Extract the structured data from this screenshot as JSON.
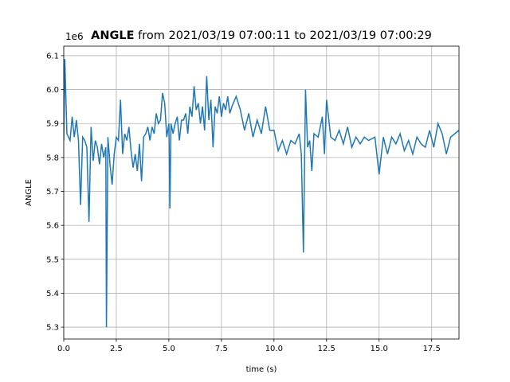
{
  "chart_data": {
    "type": "line",
    "title": {
      "bold": "ANGLE",
      "rest": "from 2021/03/19 07:00:11 to 2021/03/19 07:00:29"
    },
    "x_label": "time (s)",
    "y_label": "ANGLE",
    "y_offset_text": "1e6",
    "grid": true,
    "xlim": [
      0,
      18.8
    ],
    "ylim": [
      5.265,
      6.128
    ],
    "xticks": [
      {
        "value": 0,
        "label": "0.0"
      },
      {
        "value": 2.5,
        "label": "2.5"
      },
      {
        "value": 5,
        "label": "5.0"
      },
      {
        "value": 7.5,
        "label": "7.5"
      },
      {
        "value": 10,
        "label": "10.0"
      },
      {
        "value": 12.5,
        "label": "12.5"
      },
      {
        "value": 15,
        "label": "15.0"
      },
      {
        "value": 17.5,
        "label": "17.5"
      }
    ],
    "yticks": [
      {
        "value": 5.3,
        "label": "5.3"
      },
      {
        "value": 5.4,
        "label": "5.4"
      },
      {
        "value": 5.5,
        "label": "5.5"
      },
      {
        "value": 5.6,
        "label": "5.6"
      },
      {
        "value": 5.7,
        "label": "5.7"
      },
      {
        "value": 5.8,
        "label": "5.8"
      },
      {
        "value": 5.9,
        "label": "5.9"
      },
      {
        "value": 6.0,
        "label": "6.0"
      },
      {
        "value": 6.1,
        "label": "6.1"
      }
    ],
    "series": [
      {
        "name": "ANGLE",
        "color": "#1f77b4",
        "x": [
          0,
          0.05,
          0.15,
          0.3,
          0.4,
          0.5,
          0.6,
          0.7,
          0.8,
          0.9,
          1.0,
          1.1,
          1.2,
          1.3,
          1.4,
          1.5,
          1.6,
          1.7,
          1.8,
          1.9,
          2.0,
          2.03,
          2.1,
          2.2,
          2.3,
          2.4,
          2.5,
          2.6,
          2.7,
          2.8,
          2.9,
          3.0,
          3.1,
          3.2,
          3.3,
          3.4,
          3.5,
          3.6,
          3.7,
          3.8,
          3.9,
          4.0,
          4.1,
          4.2,
          4.3,
          4.4,
          4.5,
          4.6,
          4.7,
          4.8,
          4.9,
          5.0,
          5.05,
          5.1,
          5.2,
          5.3,
          5.4,
          5.5,
          5.6,
          5.7,
          5.8,
          5.9,
          6.0,
          6.1,
          6.2,
          6.3,
          6.4,
          6.5,
          6.6,
          6.7,
          6.8,
          6.9,
          7.0,
          7.1,
          7.2,
          7.3,
          7.4,
          7.5,
          7.6,
          7.7,
          7.8,
          7.9,
          8.0,
          8.2,
          8.4,
          8.6,
          8.8,
          9.0,
          9.2,
          9.4,
          9.6,
          9.8,
          10.0,
          10.2,
          10.4,
          10.6,
          10.8,
          11.0,
          11.2,
          11.3,
          11.4,
          11.5,
          11.6,
          11.7,
          11.8,
          11.9,
          12.1,
          12.3,
          12.4,
          12.5,
          12.7,
          12.9,
          13.1,
          13.3,
          13.5,
          13.7,
          13.9,
          14.1,
          14.3,
          14.5,
          14.8,
          15.0,
          15.2,
          15.4,
          15.6,
          15.8,
          16.0,
          16.2,
          16.4,
          16.6,
          16.8,
          17.0,
          17.2,
          17.4,
          17.6,
          17.8,
          18.0,
          18.2,
          18.4,
          18.6,
          18.8
        ],
        "values": [
          5.85,
          6.09,
          5.87,
          5.85,
          5.92,
          5.86,
          5.91,
          5.85,
          5.66,
          5.86,
          5.85,
          5.83,
          5.61,
          5.89,
          5.79,
          5.85,
          5.83,
          5.78,
          5.84,
          5.8,
          5.83,
          5.3,
          5.86,
          5.78,
          5.72,
          5.81,
          5.86,
          5.85,
          5.97,
          5.81,
          5.87,
          5.85,
          5.89,
          5.82,
          5.77,
          5.81,
          5.76,
          5.84,
          5.73,
          5.86,
          5.87,
          5.89,
          5.85,
          5.89,
          5.87,
          5.93,
          5.9,
          5.91,
          5.99,
          5.96,
          5.86,
          5.9,
          5.65,
          5.9,
          5.87,
          5.9,
          5.92,
          5.85,
          5.91,
          5.91,
          5.93,
          5.87,
          5.95,
          5.92,
          6.01,
          5.94,
          5.96,
          5.9,
          5.95,
          5.88,
          6.04,
          5.91,
          5.97,
          5.83,
          5.95,
          5.93,
          5.98,
          5.92,
          5.96,
          5.94,
          5.98,
          5.93,
          5.95,
          5.98,
          5.94,
          5.88,
          5.93,
          5.86,
          5.91,
          5.87,
          5.95,
          5.88,
          5.88,
          5.82,
          5.85,
          5.81,
          5.85,
          5.84,
          5.87,
          5.81,
          5.52,
          6.0,
          5.83,
          5.85,
          5.76,
          5.87,
          5.86,
          5.92,
          5.81,
          5.97,
          5.86,
          5.85,
          5.88,
          5.84,
          5.89,
          5.83,
          5.86,
          5.84,
          5.86,
          5.85,
          5.86,
          5.75,
          5.86,
          5.81,
          5.86,
          5.84,
          5.87,
          5.82,
          5.85,
          5.81,
          5.86,
          5.84,
          5.83,
          5.88,
          5.83,
          5.9,
          5.87,
          5.81,
          5.86,
          5.87,
          5.88
        ]
      }
    ]
  }
}
